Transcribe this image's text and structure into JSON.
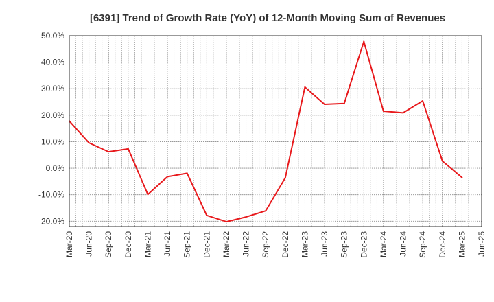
{
  "chart_data": {
    "type": "line",
    "title": "[6391]  Trend of Growth Rate (YoY) of 12-Month Moving Sum of Revenues",
    "xlabel": "",
    "ylabel": "",
    "ylim": [
      -22,
      50
    ],
    "y_ticks": [
      {
        "value": 50,
        "label": "50.0%"
      },
      {
        "value": 40,
        "label": "40.0%"
      },
      {
        "value": 30,
        "label": "30.0%"
      },
      {
        "value": 20,
        "label": "20.0%"
      },
      {
        "value": 10,
        "label": "10.0%"
      },
      {
        "value": 0,
        "label": "0.0%"
      },
      {
        "value": -10,
        "label": "-10.0%"
      },
      {
        "value": -20,
        "label": "-20.0%"
      }
    ],
    "x_tick_labels": [
      "Mar-20",
      "Jun-20",
      "Sep-20",
      "Dec-20",
      "Mar-21",
      "Jun-21",
      "Sep-21",
      "Dec-21",
      "Mar-22",
      "Jun-22",
      "Sep-22",
      "Dec-22",
      "Mar-23",
      "Jun-23",
      "Sep-23",
      "Dec-23",
      "Mar-24",
      "Jun-24",
      "Sep-24",
      "Dec-24",
      "Mar-25",
      "Jun-25"
    ],
    "grid": true,
    "legend": "none",
    "series": [
      {
        "color": "#e8191c",
        "x": [
          "Mar-20",
          "Jun-20",
          "Sep-20",
          "Dec-20",
          "Mar-21",
          "Jun-21",
          "Sep-21",
          "Dec-21",
          "Mar-22",
          "Jun-22",
          "Sep-22",
          "Dec-22",
          "Mar-23",
          "Jun-23",
          "Sep-23",
          "Dec-23",
          "Mar-24",
          "Jun-24",
          "Sep-24",
          "Dec-24",
          "Mar-25"
        ],
        "values": [
          17.8,
          9.6,
          6.2,
          7.3,
          -9.9,
          -3.2,
          -1.9,
          -17.8,
          -20.2,
          -18.4,
          -16.1,
          -3.6,
          30.6,
          24.1,
          24.4,
          47.8,
          21.5,
          20.9,
          25.4,
          2.7,
          -3.5
        ]
      }
    ]
  }
}
